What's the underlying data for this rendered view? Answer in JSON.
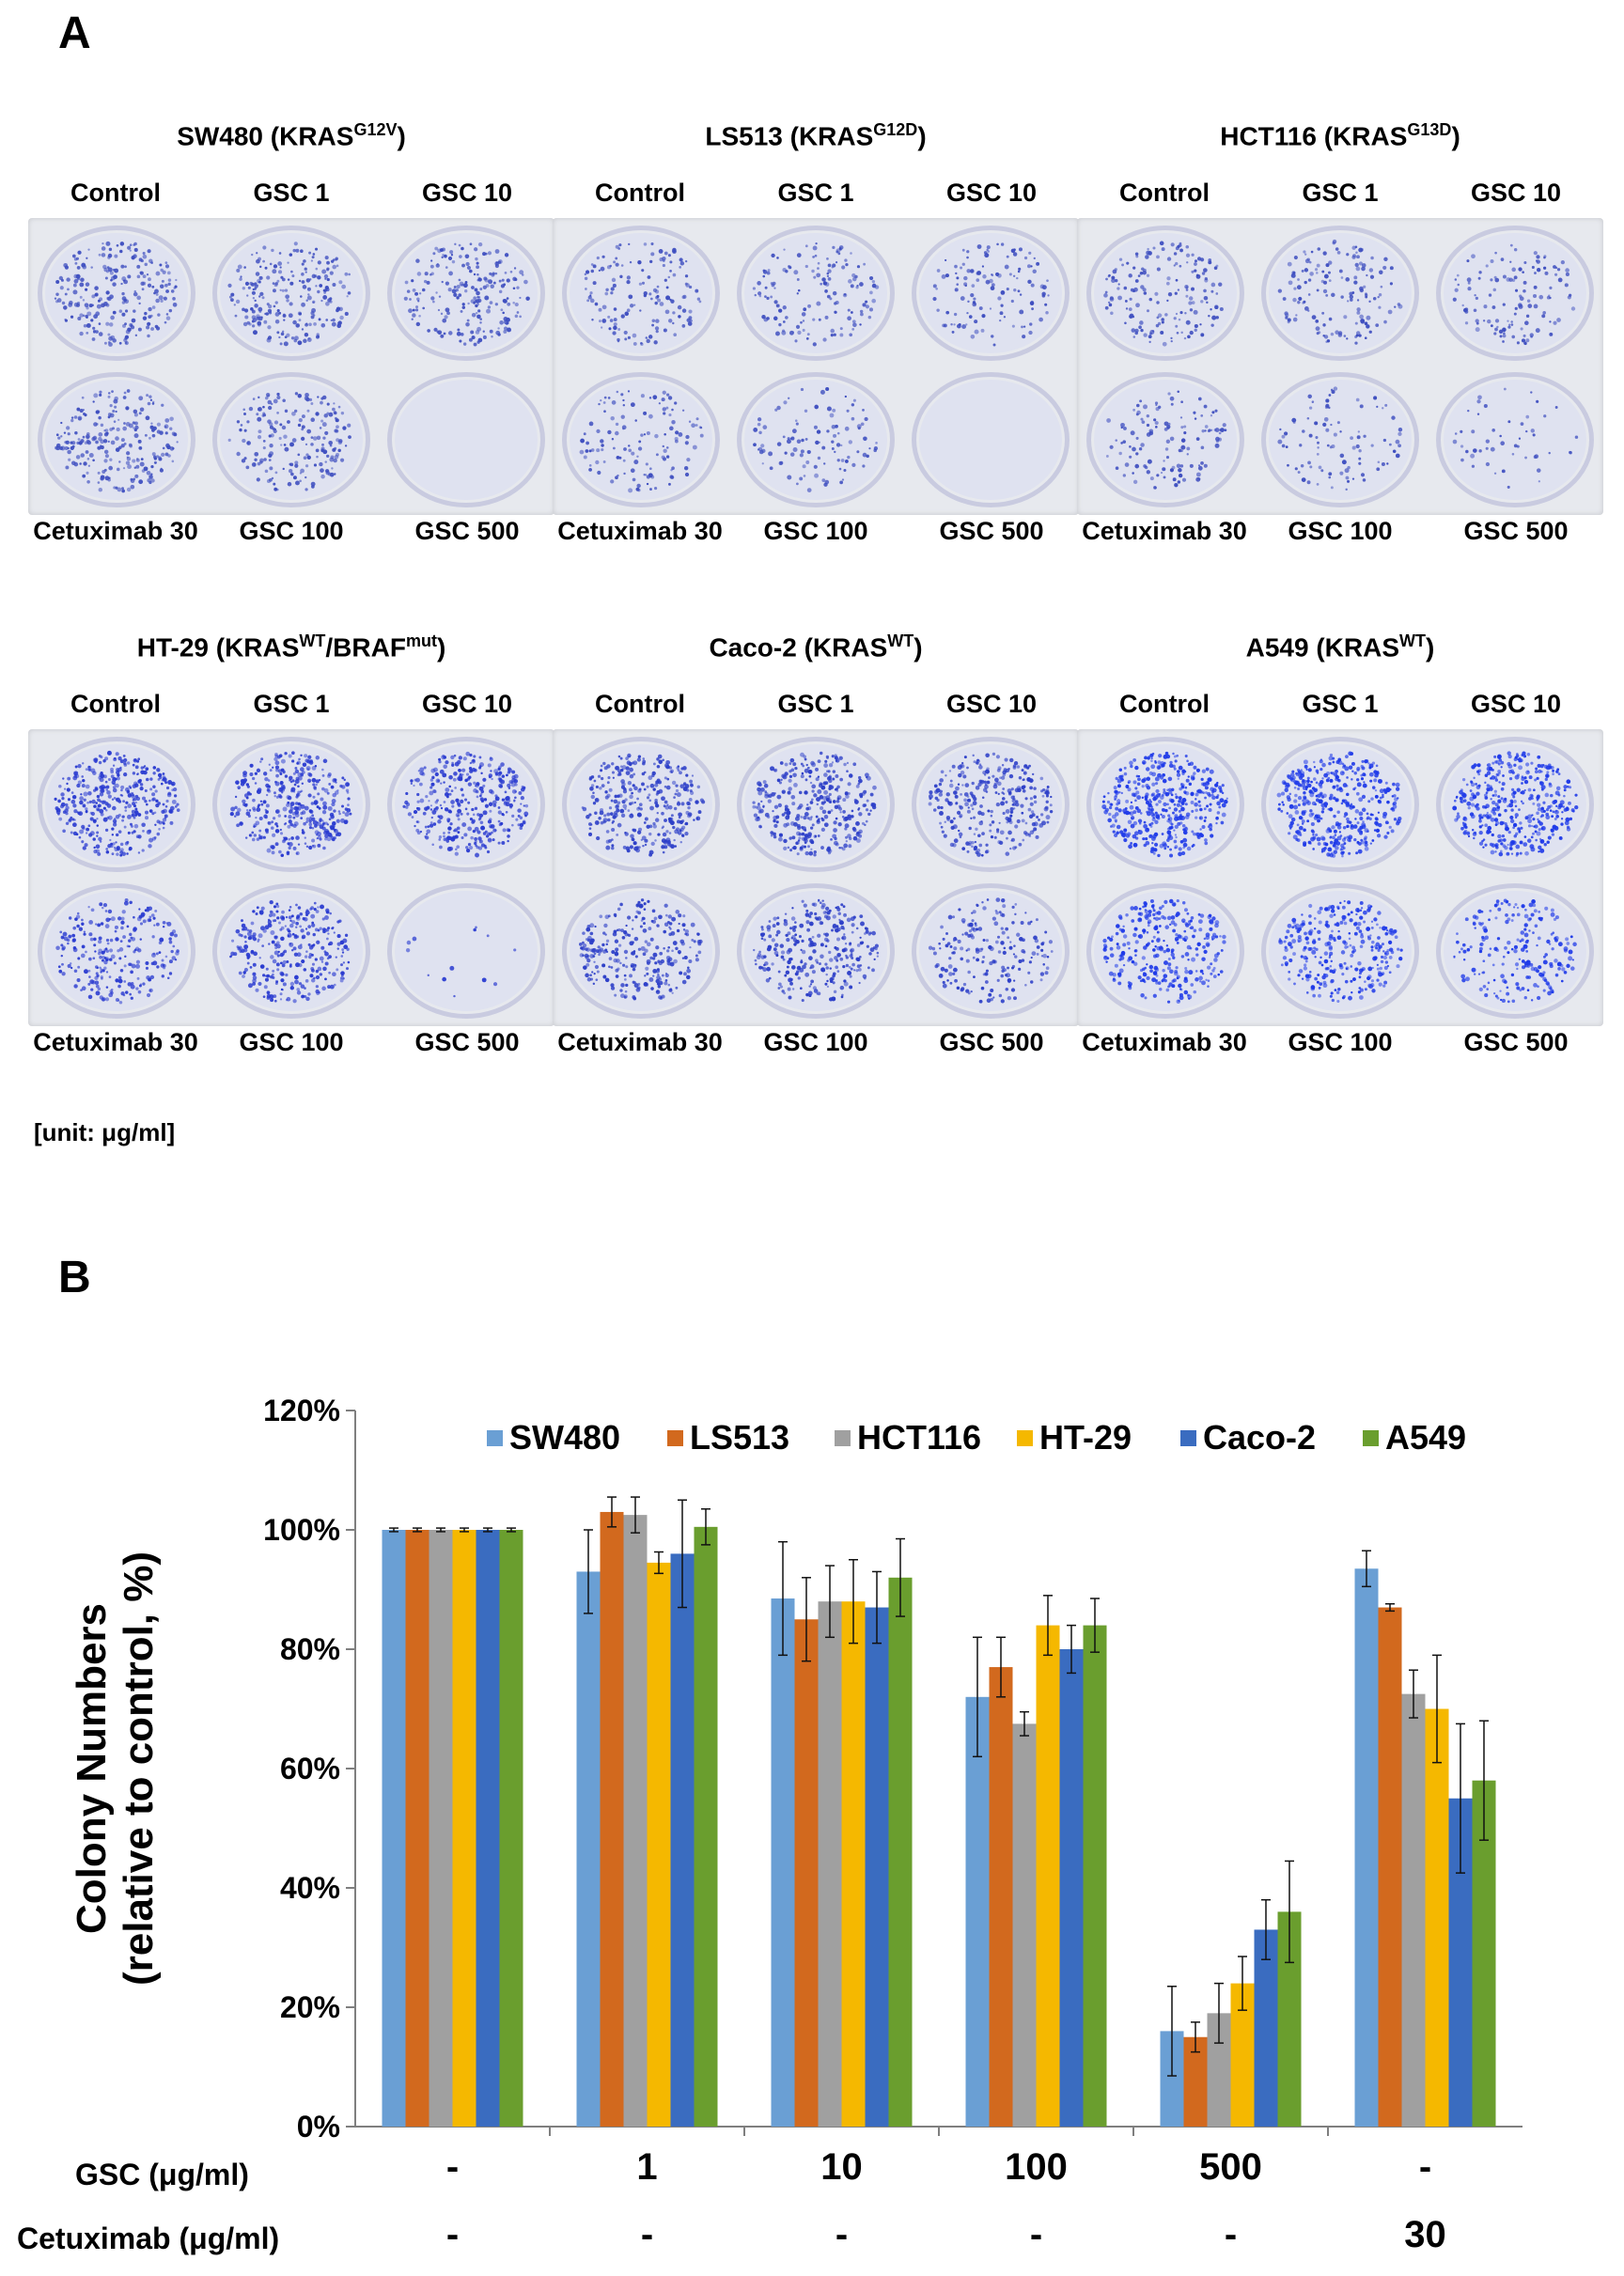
{
  "panel_a": {
    "letter": "A",
    "unit_note": "[unit: μg/ml]",
    "top_labels": [
      "Control",
      "GSC 1",
      "GSC 10"
    ],
    "bottom_labels": [
      "Cetuximab 30",
      "GSC 100",
      "GSC 500"
    ],
    "plates": [
      {
        "name": "SW480",
        "mut": "G12V",
        "title_pre": "SW480 (KRAS",
        "title_sup": "G12V",
        "title_mid": "",
        "title_sup2": "",
        "title_post": ")",
        "stain": "#3f4fc0",
        "density": [
          0.55,
          0.55,
          0.5,
          0.55,
          0.45,
          0.0
        ]
      },
      {
        "name": "LS513",
        "mut": "G12D",
        "title_pre": "LS513 (KRAS",
        "title_sup": "G12D",
        "title_mid": "",
        "title_sup2": "",
        "title_post": ")",
        "stain": "#3f4fc0",
        "density": [
          0.35,
          0.35,
          0.3,
          0.3,
          0.25,
          0.0
        ]
      },
      {
        "name": "HCT116",
        "mut": "G13D",
        "title_pre": "HCT116 (KRAS",
        "title_sup": "G13D",
        "title_mid": "",
        "title_sup2": "",
        "title_post": ")",
        "stain": "#3f4fc0",
        "density": [
          0.4,
          0.35,
          0.3,
          0.3,
          0.22,
          0.12
        ]
      },
      {
        "name": "HT-29",
        "mut": "WT/BRAFmut",
        "title_pre": "HT-29 (KRAS",
        "title_sup": "WT",
        "title_mid": "/BRAF",
        "title_sup2": "mut",
        "title_post": ")",
        "stain": "#2a3bd0",
        "density": [
          0.9,
          0.9,
          0.85,
          0.6,
          0.75,
          0.03
        ]
      },
      {
        "name": "Caco-2",
        "mut": "WT",
        "title_pre": "Caco-2 (KRAS",
        "title_sup": "WT",
        "title_mid": "",
        "title_sup2": "",
        "title_post": ")",
        "stain": "#2d3fc8",
        "density": [
          0.75,
          0.8,
          0.7,
          0.65,
          0.7,
          0.45
        ]
      },
      {
        "name": "A549",
        "mut": "WT",
        "title_pre": "A549 (KRAS",
        "title_sup": "WT",
        "title_mid": "",
        "title_sup2": "",
        "title_post": ")",
        "stain": "#1f3ae8",
        "density": [
          1.0,
          1.0,
          0.95,
          0.7,
          0.7,
          0.5
        ]
      }
    ]
  },
  "panel_b": {
    "letter": "B",
    "x_rows": {
      "gsc_label": "GSC (μg/ml)",
      "gsc_values": [
        "-",
        "1",
        "10",
        "100",
        "500",
        "-"
      ],
      "cetuximab_label": "Cetuximab (μg/ml)",
      "cetuximab_values": [
        "-",
        "-",
        "-",
        "-",
        "-",
        "30"
      ]
    }
  },
  "chart_data": {
    "type": "bar",
    "ylabel_line1": "Colony Numbers",
    "ylabel_line2": "(relative to control, %)",
    "ylim": [
      0,
      120
    ],
    "yticks": [
      "0%",
      "20%",
      "40%",
      "60%",
      "80%",
      "100%",
      "120%"
    ],
    "ytick_values": [
      0,
      20,
      40,
      60,
      80,
      100,
      120
    ],
    "categories": [
      "GSC - / Cetuximab -",
      "GSC 1",
      "GSC 10",
      "GSC 100",
      "GSC 500",
      "Cetuximab 30"
    ],
    "legend_position": "top-right",
    "series": [
      {
        "name": "SW480",
        "color": "#6a9fd4",
        "values": [
          100,
          93,
          88.5,
          72,
          16,
          93.5
        ],
        "errors": [
          0.3,
          7,
          9.5,
          10,
          7.5,
          3
        ]
      },
      {
        "name": "LS513",
        "color": "#d2691e",
        "values": [
          100,
          103,
          85,
          77,
          15,
          87
        ],
        "errors": [
          0.3,
          2.5,
          7,
          5,
          2.5,
          0.6
        ]
      },
      {
        "name": "HCT116",
        "color": "#a0a0a0",
        "values": [
          100,
          102.5,
          88,
          67.5,
          19,
          72.5
        ],
        "errors": [
          0.3,
          3,
          6,
          2,
          5,
          4
        ]
      },
      {
        "name": "HT-29",
        "color": "#f5b800",
        "values": [
          100,
          94.5,
          88,
          84,
          24,
          70
        ],
        "errors": [
          0.3,
          1.8,
          7,
          5,
          4.5,
          9
        ]
      },
      {
        "name": "Caco-2",
        "color": "#3a6cc0",
        "values": [
          100,
          96,
          87,
          80,
          33,
          55
        ],
        "errors": [
          0.3,
          9,
          6,
          4,
          5,
          12.5
        ]
      },
      {
        "name": "A549",
        "color": "#6a9e2e",
        "values": [
          100,
          100.5,
          92,
          84,
          36,
          58
        ],
        "errors": [
          0.3,
          3,
          6.5,
          4.5,
          8.5,
          10
        ]
      }
    ]
  }
}
